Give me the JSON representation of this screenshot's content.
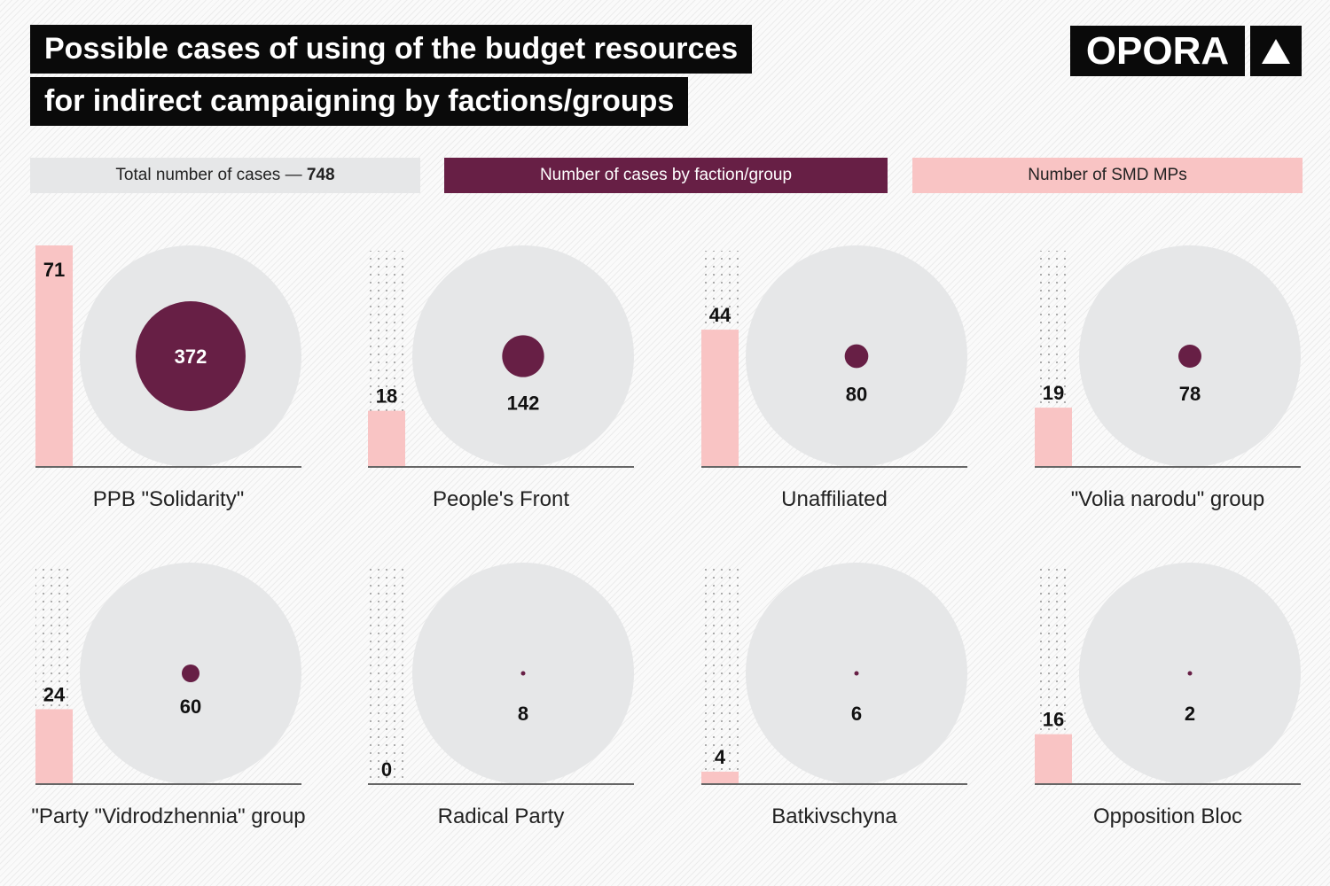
{
  "title_lines": [
    "Possible cases of using of the budget resources",
    "for indirect campaigning by factions/groups"
  ],
  "logo": {
    "text": "OPORA",
    "icon": "triangle-up-icon"
  },
  "legend": {
    "total_label": "Total number of cases — ",
    "total_value": "748",
    "cases_label": "Number of cases by faction/group",
    "mps_label": "Number of SMD MPs"
  },
  "colors": {
    "total": "#e6e7e8",
    "cases": "#671f45",
    "mps": "#f9c4c4",
    "title_bg": "#0a0a0a"
  },
  "chart_data": {
    "type": "bar+bubble",
    "total_cases": 748,
    "categories": [
      "PPB \"Solidarity\"",
      "People's Front",
      "Unaffiliated",
      "\"Volia narodu\" group",
      "\"Party \"Vidrodzhennia\" group",
      "Radical Party",
      "Batkivschyna",
      "Opposition Bloc"
    ],
    "series": [
      {
        "name": "Number of cases by faction/group",
        "values": [
          372,
          142,
          80,
          78,
          60,
          8,
          6,
          2
        ]
      },
      {
        "name": "Number of SMD MPs",
        "values": [
          71,
          18,
          44,
          19,
          24,
          0,
          4,
          16
        ]
      }
    ]
  }
}
